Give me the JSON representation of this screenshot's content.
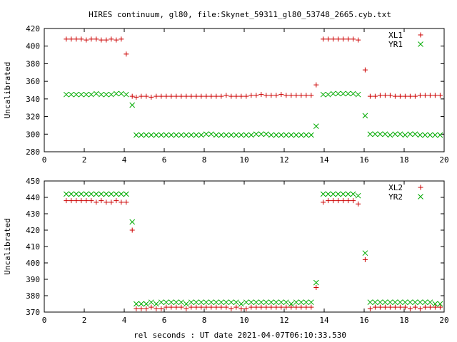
{
  "figure": {
    "title": "HIRES continuum, gl80, file:Skynet_59311_gl80_53748_2665.cyb.txt",
    "xlabel": "rel seconds : UT date 2021-04-07T06:10:33.530"
  },
  "chart_data": [
    {
      "type": "scatter",
      "ylabel": "Uncalibrated",
      "xlim": [
        0,
        20
      ],
      "ylim": [
        280,
        420
      ],
      "xticks": [
        0,
        2,
        4,
        6,
        8,
        10,
        12,
        14,
        16,
        18,
        20
      ],
      "yticks": [
        280,
        300,
        320,
        340,
        360,
        380,
        400,
        420
      ],
      "legend_position": "top-right",
      "series": [
        {
          "name": "XL1",
          "marker": "+",
          "color": "#cc0000",
          "x": [
            1.1,
            1.35,
            1.6,
            1.85,
            2.1,
            2.35,
            2.6,
            2.85,
            3.1,
            3.35,
            3.6,
            3.85,
            4.1,
            4.4,
            4.6,
            4.85,
            5.1,
            5.35,
            5.6,
            5.85,
            6.1,
            6.35,
            6.6,
            6.85,
            7.1,
            7.35,
            7.6,
            7.85,
            8.1,
            8.35,
            8.6,
            8.85,
            9.1,
            9.35,
            9.6,
            9.85,
            10.1,
            10.35,
            10.6,
            10.85,
            11.1,
            11.35,
            11.6,
            11.85,
            12.1,
            12.35,
            12.6,
            12.85,
            13.1,
            13.35,
            13.6,
            13.95,
            14.2,
            14.45,
            14.7,
            14.95,
            15.2,
            15.45,
            15.7,
            16.05,
            16.3,
            16.55,
            16.8,
            17.05,
            17.3,
            17.55,
            17.8,
            18.05,
            18.3,
            18.55,
            18.8,
            19.05,
            19.3,
            19.55,
            19.8
          ],
          "y": [
            408,
            408,
            408,
            408,
            407,
            408,
            408,
            407,
            407,
            408,
            407,
            408,
            391,
            343,
            342,
            343,
            343,
            342,
            343,
            343,
            343,
            343,
            343,
            343,
            343,
            343,
            343,
            343,
            343,
            343,
            343,
            343,
            344,
            343,
            343,
            343,
            343,
            344,
            344,
            345,
            344,
            344,
            344,
            345,
            344,
            344,
            344,
            344,
            344,
            344,
            356,
            408,
            408,
            408,
            408,
            408,
            408,
            408,
            407,
            373,
            343,
            343,
            344,
            344,
            344,
            343,
            343,
            343,
            343,
            343,
            344,
            344,
            344,
            344,
            344
          ]
        },
        {
          "name": "YR1",
          "marker": "x",
          "color": "#00aa00",
          "x": [
            1.1,
            1.35,
            1.6,
            1.85,
            2.1,
            2.35,
            2.6,
            2.85,
            3.1,
            3.35,
            3.6,
            3.85,
            4.1,
            4.4,
            4.6,
            4.85,
            5.1,
            5.35,
            5.6,
            5.85,
            6.1,
            6.35,
            6.6,
            6.85,
            7.1,
            7.35,
            7.6,
            7.85,
            8.1,
            8.35,
            8.6,
            8.85,
            9.1,
            9.35,
            9.6,
            9.85,
            10.1,
            10.35,
            10.6,
            10.85,
            11.1,
            11.35,
            11.6,
            11.85,
            12.1,
            12.35,
            12.6,
            12.85,
            13.1,
            13.35,
            13.6,
            13.95,
            14.2,
            14.45,
            14.7,
            14.95,
            15.2,
            15.45,
            15.7,
            16.05,
            16.3,
            16.55,
            16.8,
            17.05,
            17.3,
            17.55,
            17.8,
            18.05,
            18.3,
            18.55,
            18.8,
            19.05,
            19.3,
            19.55,
            19.8
          ],
          "y": [
            345,
            345,
            345,
            345,
            345,
            345,
            346,
            345,
            345,
            345,
            346,
            346,
            345,
            333,
            299,
            299,
            299,
            299,
            299,
            299,
            299,
            299,
            299,
            299,
            299,
            299,
            299,
            299,
            300,
            300,
            299,
            299,
            299,
            299,
            299,
            299,
            299,
            299,
            300,
            300,
            300,
            299,
            299,
            299,
            299,
            299,
            299,
            299,
            299,
            299,
            309,
            345,
            345,
            346,
            346,
            346,
            346,
            346,
            345,
            321,
            300,
            300,
            300,
            300,
            299,
            300,
            300,
            299,
            300,
            300,
            299,
            299,
            299,
            299,
            299
          ]
        }
      ]
    },
    {
      "type": "scatter",
      "ylabel": "Uncalibrated",
      "xlim": [
        0,
        20
      ],
      "ylim": [
        370,
        450
      ],
      "xticks": [
        0,
        2,
        4,
        6,
        8,
        10,
        12,
        14,
        16,
        18,
        20
      ],
      "yticks": [
        370,
        380,
        390,
        400,
        410,
        420,
        430,
        440,
        450
      ],
      "legend_position": "top-right",
      "series": [
        {
          "name": "XL2",
          "marker": "+",
          "color": "#cc0000",
          "x": [
            1.1,
            1.35,
            1.6,
            1.85,
            2.1,
            2.35,
            2.6,
            2.85,
            3.1,
            3.35,
            3.6,
            3.85,
            4.1,
            4.4,
            4.6,
            4.85,
            5.1,
            5.35,
            5.6,
            5.85,
            6.1,
            6.35,
            6.6,
            6.85,
            7.1,
            7.35,
            7.6,
            7.85,
            8.1,
            8.35,
            8.6,
            8.85,
            9.1,
            9.35,
            9.6,
            9.85,
            10.1,
            10.35,
            10.6,
            10.85,
            11.1,
            11.35,
            11.6,
            11.85,
            12.1,
            12.35,
            12.6,
            12.85,
            13.1,
            13.35,
            13.6,
            13.95,
            14.2,
            14.45,
            14.7,
            14.95,
            15.2,
            15.45,
            15.7,
            16.05,
            16.3,
            16.55,
            16.8,
            17.05,
            17.3,
            17.55,
            17.8,
            18.05,
            18.3,
            18.55,
            18.8,
            19.05,
            19.3,
            19.55,
            19.8
          ],
          "y": [
            438,
            438,
            438,
            438,
            438,
            438,
            437,
            438,
            437,
            437,
            438,
            437,
            437,
            420,
            372,
            372,
            372,
            373,
            372,
            372,
            373,
            373,
            373,
            373,
            372,
            373,
            373,
            373,
            373,
            373,
            373,
            373,
            373,
            372,
            373,
            372,
            372,
            373,
            373,
            373,
            373,
            373,
            373,
            373,
            373,
            373,
            373,
            373,
            373,
            373,
            385,
            437,
            438,
            438,
            438,
            438,
            438,
            438,
            436,
            402,
            372,
            373,
            373,
            373,
            373,
            373,
            373,
            373,
            372,
            373,
            372,
            373,
            373,
            373,
            373
          ]
        },
        {
          "name": "YR2",
          "marker": "x",
          "color": "#00aa00",
          "x": [
            1.1,
            1.35,
            1.6,
            1.85,
            2.1,
            2.35,
            2.6,
            2.85,
            3.1,
            3.35,
            3.6,
            3.85,
            4.1,
            4.4,
            4.6,
            4.85,
            5.1,
            5.35,
            5.6,
            5.85,
            6.1,
            6.35,
            6.6,
            6.85,
            7.1,
            7.35,
            7.6,
            7.85,
            8.1,
            8.35,
            8.6,
            8.85,
            9.1,
            9.35,
            9.6,
            9.85,
            10.1,
            10.35,
            10.6,
            10.85,
            11.1,
            11.35,
            11.6,
            11.85,
            12.1,
            12.35,
            12.6,
            12.85,
            13.1,
            13.35,
            13.6,
            13.95,
            14.2,
            14.45,
            14.7,
            14.95,
            15.2,
            15.45,
            15.7,
            16.05,
            16.3,
            16.55,
            16.8,
            17.05,
            17.3,
            17.55,
            17.8,
            18.05,
            18.3,
            18.55,
            18.8,
            19.05,
            19.3,
            19.55,
            19.8
          ],
          "y": [
            442,
            442,
            442,
            442,
            442,
            442,
            442,
            442,
            442,
            442,
            442,
            442,
            442,
            425,
            375,
            375,
            375,
            376,
            375,
            376,
            376,
            376,
            376,
            376,
            375,
            376,
            376,
            376,
            376,
            376,
            376,
            376,
            376,
            376,
            376,
            375,
            376,
            376,
            376,
            376,
            376,
            376,
            376,
            376,
            376,
            375,
            376,
            376,
            376,
            376,
            388,
            442,
            442,
            442,
            442,
            442,
            442,
            442,
            441,
            406,
            376,
            376,
            376,
            376,
            376,
            376,
            376,
            376,
            376,
            376,
            376,
            376,
            376,
            375,
            375
          ]
        }
      ]
    }
  ]
}
